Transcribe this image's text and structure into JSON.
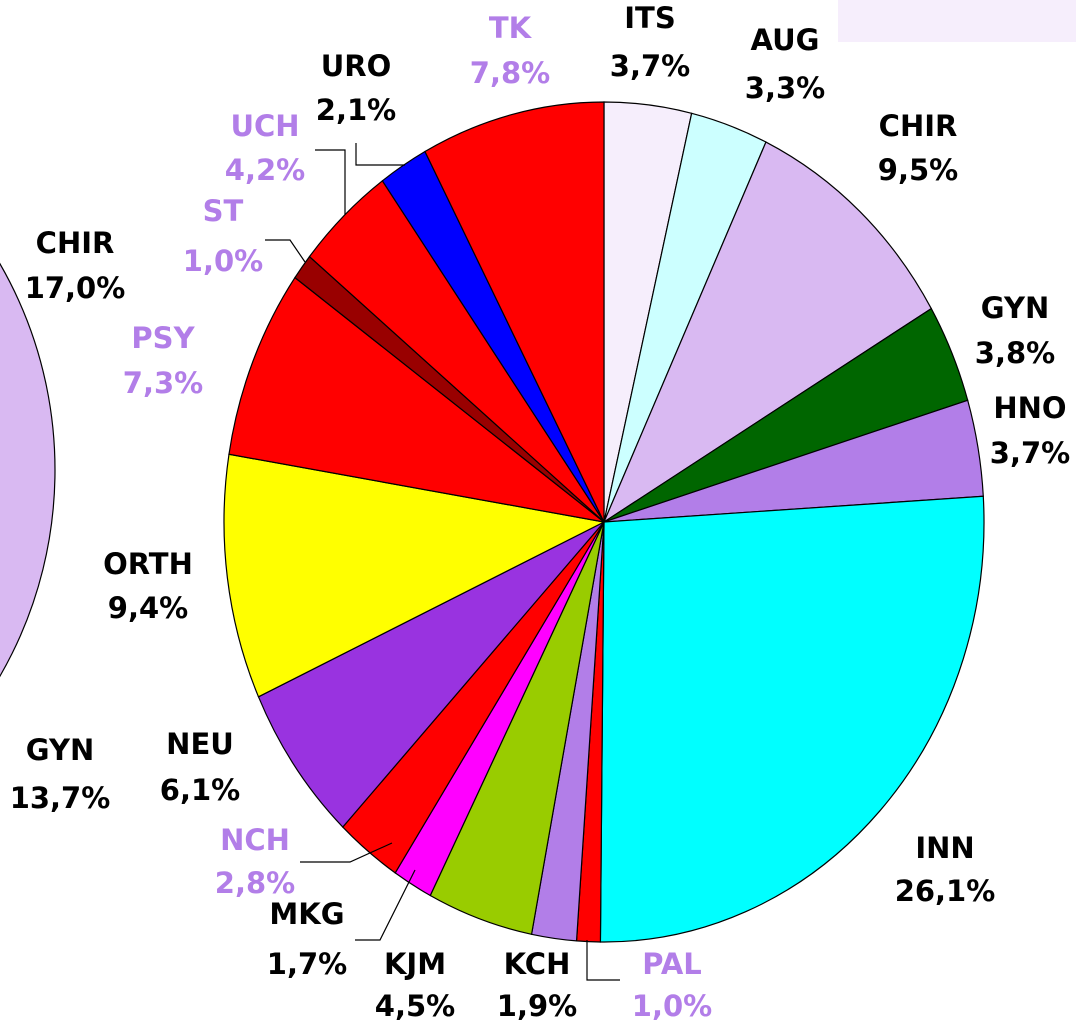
{
  "chart_data": [
    {
      "type": "pie",
      "categories": [
        "ITS",
        "AUG",
        "CHIR",
        "GYN",
        "HNO",
        "INN",
        "PAL",
        "KCH",
        "KJM",
        "MKG",
        "NCH",
        "NEU",
        "ORTH",
        "PSY",
        "ST",
        "UCH",
        "URO",
        "TK"
      ],
      "values": [
        3.7,
        3.3,
        9.5,
        3.8,
        3.7,
        26.1,
        1.0,
        1.9,
        4.5,
        1.7,
        2.8,
        6.1,
        9.4,
        7.3,
        1.0,
        4.2,
        2.1,
        7.8
      ],
      "value_labels": [
        "3,7%",
        "3,3%",
        "9,5%",
        "3,8%",
        "3,7%",
        "26,1%",
        "1,0%",
        "1,9%",
        "4,5%",
        "1,7%",
        "2,8%",
        "6,1%",
        "9,4%",
        "7,3%",
        "1,0%",
        "4,2%",
        "2,1%",
        "7,8%"
      ],
      "colors": [
        "#f6eefc",
        "#ccffff",
        "#d9b9f2",
        "#006600",
        "#b27ee8",
        "#00ffff",
        "#ff0000",
        "#b27ee8",
        "#99cc00",
        "#ff00ff",
        "#ff0000",
        "#9933e0",
        "#ffff00",
        "#ff0000",
        "#990000",
        "#ff0000",
        "#0000ff",
        "#ff0000"
      ],
      "label_colors": [
        "#000000",
        "#000000",
        "#000000",
        "#000000",
        "#000000",
        "#000000",
        "#b27ee8",
        "#000000",
        "#000000",
        "#000000",
        "#b27ee8",
        "#000000",
        "#000000",
        "#b27ee8",
        "#b27ee8",
        "#b27ee8",
        "#000000",
        "#b27ee8"
      ]
    },
    {
      "type": "pie",
      "categories": [
        "CHIR",
        "GYN"
      ],
      "values": [
        17.0,
        13.7
      ],
      "value_labels": [
        "17,0%",
        "13,7%"
      ],
      "colors": [
        "#d9b9f2",
        "#006600"
      ],
      "label_colors": [
        "#000000",
        "#000000"
      ]
    }
  ]
}
